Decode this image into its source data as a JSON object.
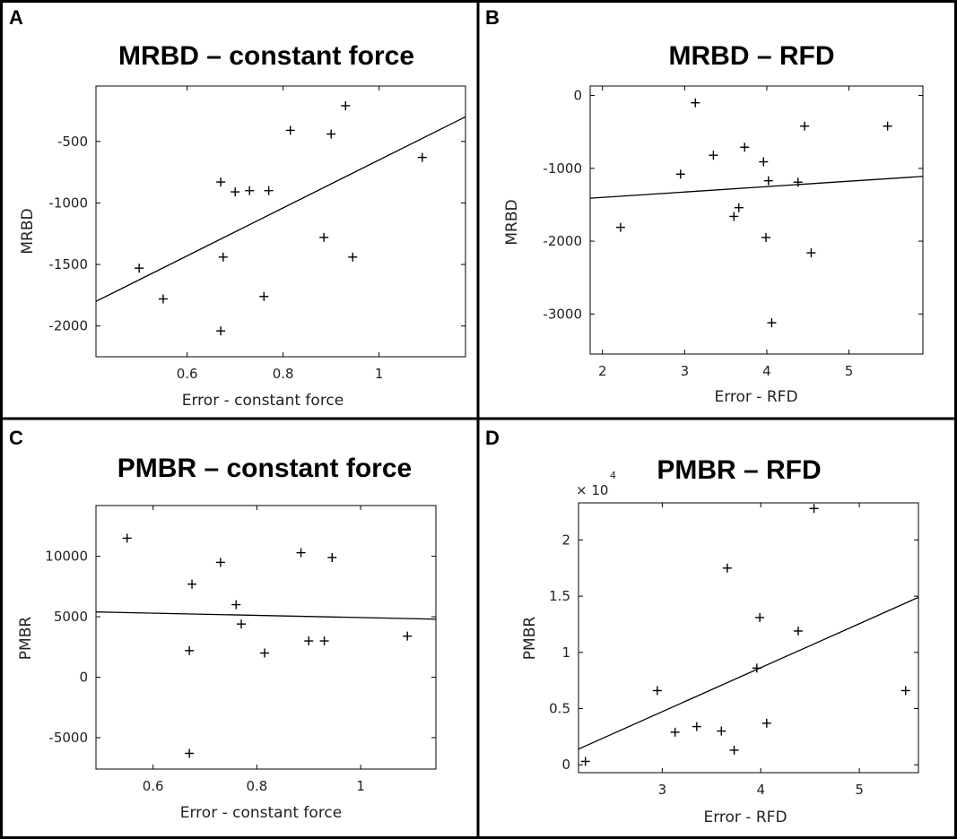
{
  "chart_data": [
    {
      "panel": "A",
      "type": "scatter",
      "title": "MRBD – constant force",
      "xlabel": "Error - constant force",
      "ylabel": "MRBD",
      "xlim": [
        0.41,
        1.18
      ],
      "ylim": [
        -2250,
        -50
      ],
      "xticks": [
        0.6,
        0.8,
        1
      ],
      "xtick_labels": [
        "0.6",
        "0.8",
        "1"
      ],
      "yticks": [
        -2000,
        -1500,
        -1000,
        -500
      ],
      "ytick_labels": [
        "-2000",
        "-1500",
        "-1000",
        "-500"
      ],
      "grid": false,
      "points": [
        {
          "x": 0.5,
          "y": -1530
        },
        {
          "x": 0.55,
          "y": -1780
        },
        {
          "x": 0.67,
          "y": -830
        },
        {
          "x": 0.67,
          "y": -2040
        },
        {
          "x": 0.675,
          "y": -1440
        },
        {
          "x": 0.7,
          "y": -910
        },
        {
          "x": 0.73,
          "y": -900
        },
        {
          "x": 0.76,
          "y": -1760
        },
        {
          "x": 0.77,
          "y": -900
        },
        {
          "x": 0.815,
          "y": -410
        },
        {
          "x": 0.885,
          "y": -1280
        },
        {
          "x": 0.9,
          "y": -440
        },
        {
          "x": 0.93,
          "y": -210
        },
        {
          "x": 0.945,
          "y": -1440
        },
        {
          "x": 1.09,
          "y": -630
        }
      ],
      "fit": {
        "x": [
          0.41,
          1.18
        ],
        "y": [
          -1800,
          -300
        ]
      }
    },
    {
      "panel": "B",
      "type": "scatter",
      "title": "MRBD – RFD",
      "xlabel": "Error - RFD",
      "ylabel": "MRBD",
      "xlim": [
        1.85,
        5.9
      ],
      "ylim": [
        -3550,
        130
      ],
      "xticks": [
        2,
        3,
        4,
        5
      ],
      "xtick_labels": [
        "2",
        "3",
        "4",
        "5"
      ],
      "yticks": [
        -3000,
        -2000,
        -1000,
        0
      ],
      "ytick_labels": [
        "-3000",
        "-2000",
        "-1000",
        "0"
      ],
      "grid": false,
      "points": [
        {
          "x": 2.22,
          "y": -1810
        },
        {
          "x": 2.95,
          "y": -1080
        },
        {
          "x": 3.13,
          "y": -100
        },
        {
          "x": 3.35,
          "y": -820
        },
        {
          "x": 3.6,
          "y": -1660
        },
        {
          "x": 3.66,
          "y": -1540
        },
        {
          "x": 3.73,
          "y": -710
        },
        {
          "x": 3.96,
          "y": -910
        },
        {
          "x": 3.99,
          "y": -1950
        },
        {
          "x": 4.02,
          "y": -1170
        },
        {
          "x": 4.06,
          "y": -3120
        },
        {
          "x": 4.38,
          "y": -1190
        },
        {
          "x": 4.46,
          "y": -420
        },
        {
          "x": 4.54,
          "y": -2160
        },
        {
          "x": 5.47,
          "y": -420
        }
      ],
      "fit": {
        "x": [
          1.85,
          5.9
        ],
        "y": [
          -1410,
          -1110
        ]
      }
    },
    {
      "panel": "C",
      "type": "scatter",
      "title": "PMBR – constant force",
      "xlabel": "Error - constant force",
      "ylabel": "PMBR",
      "xlim": [
        0.49,
        1.145
      ],
      "ylim": [
        -7600,
        14200
      ],
      "xticks": [
        0.6,
        0.8,
        1
      ],
      "xtick_labels": [
        "0.6",
        "0.8",
        "1"
      ],
      "yticks": [
        -5000,
        0,
        5000,
        10000
      ],
      "ytick_labels": [
        "-5000",
        "0",
        "5000",
        "10000"
      ],
      "grid": false,
      "points": [
        {
          "x": 0.55,
          "y": 11500
        },
        {
          "x": 0.67,
          "y": 2200
        },
        {
          "x": 0.67,
          "y": -6300
        },
        {
          "x": 0.675,
          "y": 7700
        },
        {
          "x": 0.73,
          "y": 9500
        },
        {
          "x": 0.76,
          "y": 6000
        },
        {
          "x": 0.77,
          "y": 4400
        },
        {
          "x": 0.815,
          "y": 2000
        },
        {
          "x": 0.885,
          "y": 10300
        },
        {
          "x": 0.9,
          "y": 3000
        },
        {
          "x": 0.93,
          "y": 3000
        },
        {
          "x": 0.945,
          "y": 9900
        },
        {
          "x": 1.09,
          "y": 3400
        }
      ],
      "fit": {
        "x": [
          0.49,
          1.145
        ],
        "y": [
          5400,
          4800
        ]
      }
    },
    {
      "panel": "D",
      "type": "scatter",
      "title": "PMBR – RFD",
      "xlabel": "Error - RFD",
      "ylabel": "PMBR",
      "exponent_label": "× 10",
      "exponent_power": "4",
      "xlim": [
        2.15,
        5.6
      ],
      "ylim": [
        -0.07,
        2.33
      ],
      "xticks": [
        3,
        4,
        5
      ],
      "xtick_labels": [
        "3",
        "4",
        "5"
      ],
      "yticks": [
        0,
        0.5,
        1,
        1.5,
        2
      ],
      "ytick_labels": [
        "0",
        "0.5",
        "1",
        "1.5",
        "2"
      ],
      "grid": false,
      "points": [
        {
          "x": 2.22,
          "y": 0.03
        },
        {
          "x": 2.95,
          "y": 0.66
        },
        {
          "x": 3.13,
          "y": 0.29
        },
        {
          "x": 3.35,
          "y": 0.34
        },
        {
          "x": 3.6,
          "y": 0.3
        },
        {
          "x": 3.66,
          "y": 1.75
        },
        {
          "x": 3.73,
          "y": 0.13
        },
        {
          "x": 3.96,
          "y": 0.86
        },
        {
          "x": 3.99,
          "y": 1.31
        },
        {
          "x": 4.06,
          "y": 0.37
        },
        {
          "x": 4.38,
          "y": 1.19
        },
        {
          "x": 4.54,
          "y": 2.28
        },
        {
          "x": 5.47,
          "y": 0.66
        }
      ],
      "fit": {
        "x": [
          2.15,
          5.6
        ],
        "y": [
          0.14,
          1.49
        ]
      }
    }
  ]
}
